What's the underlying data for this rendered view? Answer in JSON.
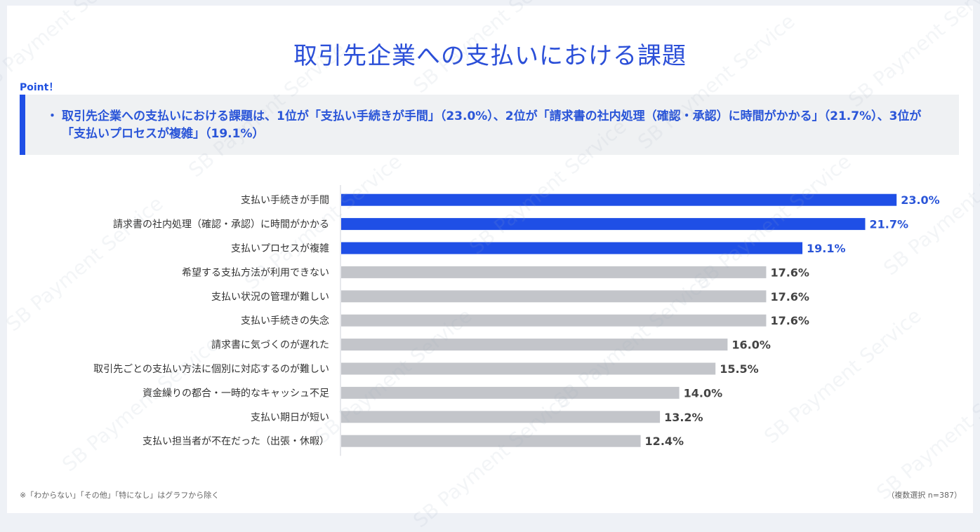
{
  "title": "取引先企業への支払いにおける課題",
  "point": {
    "label": "Point！",
    "bullet": "・",
    "text": "取引先企業への支払いにおける課題は、1位が「支払い手続きが手間」（23.0%）、2位が「請求書の社内処理（確認・承認）に時間がかかる」（21.7%）、3位が「支払いプロセスが複雑」（19.1%）"
  },
  "footnote": "※「わからない」「その他」「特になし」はグラフから除く",
  "sample": "（複数選択 n=387）",
  "watermark": "SB Payment Service",
  "colors": {
    "highlight": "#1f4fe6",
    "normal": "#c3c5ca",
    "highlight_label": "#2a55d8",
    "normal_label": "#444444"
  },
  "chart_data": {
    "type": "bar",
    "orientation": "horizontal",
    "categories": [
      "支払い手続きが手間",
      "請求書の社内処理（確認・承認）に時間がかかる",
      "支払いプロセスが複雑",
      "希望する支払方法が利用できない",
      "支払い状況の管理が難しい",
      "支払い手続きの失念",
      "請求書に気づくのが遅れた",
      "取引先ごとの支払い方法に個別に対応するのが難しい",
      "資金繰りの都合・一時的なキャッシュ不足",
      "支払い期日が短い",
      "支払い担当者が不在だった（出張・休暇）"
    ],
    "values": [
      23.0,
      21.7,
      19.1,
      17.6,
      17.6,
      17.6,
      16.0,
      15.5,
      14.0,
      13.2,
      12.4
    ],
    "value_labels": [
      "23.0%",
      "21.7%",
      "19.1%",
      "17.6%",
      "17.6%",
      "17.6%",
      "16.0%",
      "15.5%",
      "14.0%",
      "13.2%",
      "12.4%"
    ],
    "highlighted_top": 3,
    "xlim": [
      0,
      25
    ],
    "grid": false,
    "unit": "%"
  }
}
